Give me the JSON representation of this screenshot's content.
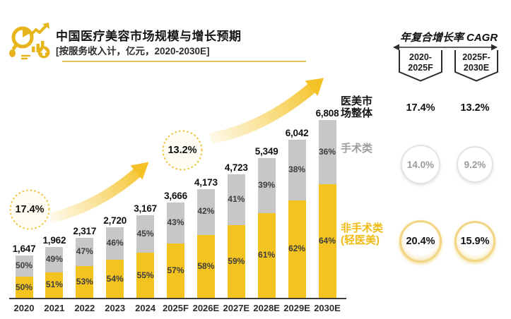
{
  "header": {
    "title": "中国医疗美容市场规模与增长预期",
    "subtitle": "[按服务收入计，亿元，2020-2030E]"
  },
  "chart_labels": {
    "market_total": "医美市\n场整体",
    "surgical": "手术类",
    "nonsurgical": "非手术类\n(轻医美)"
  },
  "chart_data": {
    "type": "bar",
    "stacked": true,
    "title": "中国医疗美容市场规模与增长预期",
    "unit": "亿元",
    "categories": [
      "2020",
      "2021",
      "2022",
      "2023",
      "2024",
      "2025F",
      "2026E",
      "2027E",
      "2028E",
      "2029E",
      "2030E"
    ],
    "totals": [
      1647,
      1962,
      2317,
      2720,
      3167,
      3666,
      4173,
      4723,
      5349,
      6042,
      6808
    ],
    "total_labels": [
      "1,647",
      "1,962",
      "2,317",
      "2,720",
      "3,167",
      "3,666",
      "4,173",
      "4,723",
      "5,349",
      "6,042",
      "6,808"
    ],
    "series": [
      {
        "name": "非手术类(轻医美)",
        "color": "#F3C320",
        "pct": [
          50,
          51,
          53,
          54,
          55,
          57,
          58,
          59,
          61,
          62,
          64
        ]
      },
      {
        "name": "手术类",
        "color": "#C7C7C7",
        "pct": [
          50,
          49,
          47,
          46,
          45,
          43,
          42,
          41,
          39,
          38,
          36
        ]
      }
    ],
    "growth_badges": [
      "17.4%",
      "13.2%"
    ],
    "ylim": [
      0,
      6808
    ],
    "legend_position": "right",
    "grid": false
  },
  "cagr_panel": {
    "title": "年复合增长率 CAGR",
    "columns": [
      "2020-\n2025F",
      "2025F-\n2030E"
    ],
    "rows": [
      {
        "label": "医美市场整体",
        "style": "plain",
        "values": [
          "17.4%",
          "13.2%"
        ]
      },
      {
        "label": "手术类",
        "style": "gray-circle",
        "values": [
          "14.0%",
          "9.2%"
        ]
      },
      {
        "label": "非手术类(轻医美)",
        "style": "yellow-circle",
        "values": [
          "20.4%",
          "15.9%"
        ]
      }
    ]
  },
  "colors": {
    "bar_yellow": "#F3C320",
    "bar_gray": "#C7C7C7",
    "icon_gold": "#E8B41C",
    "arrow_yellow": "#F4C227",
    "divider_gold": "#E3C35C",
    "text_dark": "#161616",
    "label_gray": "#9E9E9E",
    "label_yellow": "#F0BA12"
  }
}
